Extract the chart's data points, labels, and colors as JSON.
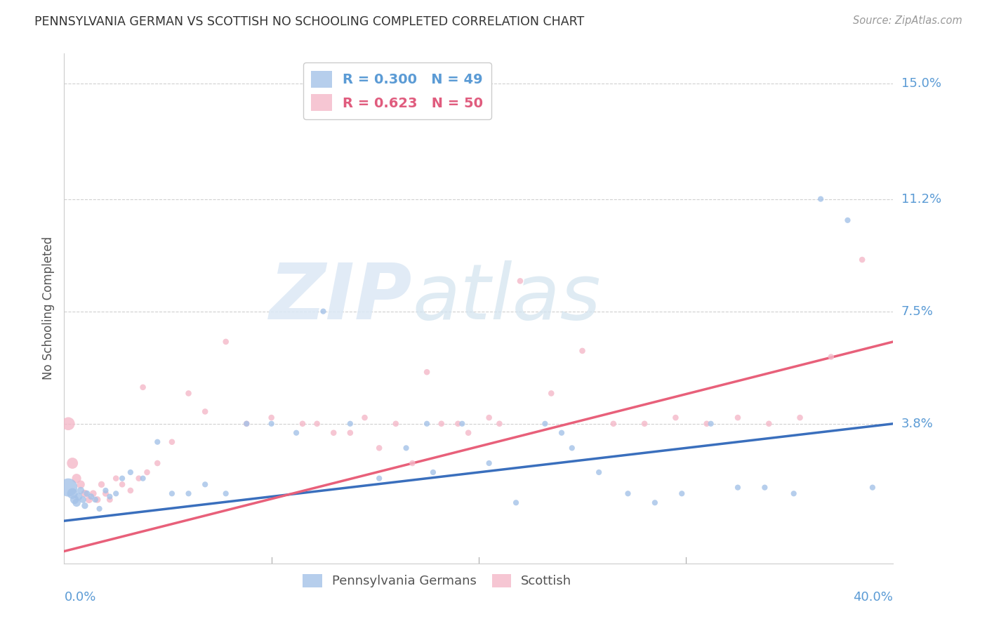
{
  "title": "PENNSYLVANIA GERMAN VS SCOTTISH NO SCHOOLING COMPLETED CORRELATION CHART",
  "source": "Source: ZipAtlas.com",
  "ylabel": "No Schooling Completed",
  "xmin": 0.0,
  "xmax": 0.4,
  "ymin": -0.008,
  "ymax": 0.16,
  "blue_color": "#a4c2e8",
  "pink_color": "#f4b8c8",
  "blue_line_color": "#3a6fbd",
  "pink_line_color": "#e8607a",
  "blue_R": 0.3,
  "blue_N": 49,
  "pink_R": 0.623,
  "pink_N": 50,
  "watermark_zip": "ZIP",
  "watermark_atlas": "atlas",
  "background_color": "#ffffff",
  "grid_color": "#d0d0d0",
  "legend_label_blue": "Pennsylvania Germans",
  "legend_label_pink": "Scottish",
  "blue_line_y_start": 0.006,
  "blue_line_y_end": 0.038,
  "pink_line_y_start": -0.004,
  "pink_line_y_end": 0.065,
  "blue_points_x": [
    0.002,
    0.004,
    0.005,
    0.006,
    0.007,
    0.008,
    0.009,
    0.01,
    0.011,
    0.013,
    0.015,
    0.017,
    0.02,
    0.022,
    0.025,
    0.028,
    0.032,
    0.038,
    0.045,
    0.052,
    0.06,
    0.068,
    0.078,
    0.088,
    0.1,
    0.112,
    0.125,
    0.138,
    0.152,
    0.165,
    0.178,
    0.192,
    0.205,
    0.218,
    0.232,
    0.245,
    0.258,
    0.272,
    0.285,
    0.298,
    0.312,
    0.325,
    0.338,
    0.352,
    0.365,
    0.378,
    0.39,
    0.175,
    0.24
  ],
  "blue_points_y": [
    0.017,
    0.015,
    0.013,
    0.012,
    0.014,
    0.016,
    0.013,
    0.011,
    0.015,
    0.014,
    0.013,
    0.01,
    0.016,
    0.014,
    0.015,
    0.02,
    0.022,
    0.02,
    0.032,
    0.015,
    0.015,
    0.018,
    0.015,
    0.038,
    0.038,
    0.035,
    0.075,
    0.038,
    0.02,
    0.03,
    0.022,
    0.038,
    0.025,
    0.012,
    0.038,
    0.03,
    0.022,
    0.015,
    0.012,
    0.015,
    0.038,
    0.017,
    0.017,
    0.015,
    0.112,
    0.105,
    0.017,
    0.038,
    0.035
  ],
  "blue_points_size": [
    350,
    120,
    80,
    70,
    60,
    55,
    50,
    45,
    42,
    40,
    38,
    35,
    35,
    35,
    35,
    35,
    35,
    35,
    35,
    35,
    35,
    35,
    35,
    35,
    35,
    35,
    35,
    35,
    35,
    35,
    35,
    35,
    35,
    35,
    35,
    35,
    35,
    35,
    35,
    35,
    35,
    35,
    35,
    35,
    35,
    35,
    35,
    35,
    35
  ],
  "pink_points_x": [
    0.002,
    0.004,
    0.006,
    0.008,
    0.01,
    0.012,
    0.014,
    0.016,
    0.018,
    0.02,
    0.022,
    0.025,
    0.028,
    0.032,
    0.036,
    0.04,
    0.045,
    0.052,
    0.06,
    0.068,
    0.078,
    0.088,
    0.1,
    0.115,
    0.13,
    0.145,
    0.16,
    0.175,
    0.19,
    0.205,
    0.22,
    0.235,
    0.25,
    0.265,
    0.28,
    0.295,
    0.31,
    0.325,
    0.34,
    0.355,
    0.37,
    0.385,
    0.122,
    0.138,
    0.152,
    0.168,
    0.182,
    0.195,
    0.038,
    0.21
  ],
  "pink_points_y": [
    0.038,
    0.025,
    0.02,
    0.018,
    0.015,
    0.013,
    0.015,
    0.013,
    0.018,
    0.015,
    0.013,
    0.02,
    0.018,
    0.016,
    0.02,
    0.022,
    0.025,
    0.032,
    0.048,
    0.042,
    0.065,
    0.038,
    0.04,
    0.038,
    0.035,
    0.04,
    0.038,
    0.055,
    0.038,
    0.04,
    0.085,
    0.048,
    0.062,
    0.038,
    0.038,
    0.04,
    0.038,
    0.04,
    0.038,
    0.04,
    0.06,
    0.092,
    0.038,
    0.035,
    0.03,
    0.025,
    0.038,
    0.035,
    0.05,
    0.038
  ],
  "pink_points_size": [
    180,
    130,
    90,
    70,
    60,
    55,
    50,
    48,
    45,
    42,
    40,
    38,
    38,
    38,
    38,
    38,
    38,
    38,
    38,
    38,
    38,
    38,
    38,
    38,
    38,
    38,
    38,
    38,
    38,
    38,
    38,
    38,
    38,
    38,
    38,
    38,
    38,
    38,
    38,
    38,
    38,
    38,
    38,
    38,
    38,
    38,
    38,
    38,
    38,
    38
  ]
}
